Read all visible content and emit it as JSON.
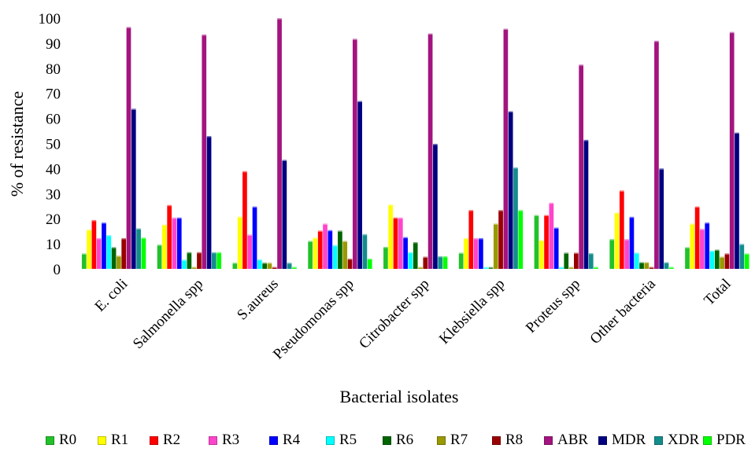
{
  "chart_data": {
    "type": "bar",
    "title": "",
    "xlabel": "Bacterial isolates",
    "ylabel": "% of resistance",
    "ylim": [
      0,
      100
    ],
    "yticks": [
      "0",
      "10",
      "20",
      "30",
      "40",
      "50",
      "60",
      "70",
      "80",
      "90",
      "100"
    ],
    "grid": false,
    "legend_position": "bottom",
    "categories": [
      "E. coli",
      "Salmonella spp",
      "S.aureus",
      "Pseudomonas spp",
      "Citrobacter spp",
      "Klebsiella spp",
      "Proteus spp",
      "Other bacteria",
      "Total"
    ],
    "series": [
      {
        "name": "R0",
        "color": "#22c12a",
        "values": [
          5.7,
          9.2,
          2.0,
          10.7,
          8.3,
          6.0,
          21.0,
          11.4,
          8.2
        ]
      },
      {
        "name": "R1",
        "color": "#ffff00",
        "values": [
          15.2,
          17.2,
          20.4,
          12.0,
          25.2,
          11.8,
          11.0,
          22.0,
          17.6
        ]
      },
      {
        "name": "R2",
        "color": "#ff0000",
        "values": [
          19.0,
          25.0,
          38.5,
          14.8,
          20.0,
          23.0,
          21.0,
          30.8,
          24.4
        ]
      },
      {
        "name": "R3",
        "color": "#ff44cc",
        "values": [
          11.8,
          20.0,
          13.2,
          17.6,
          20.0,
          11.8,
          25.9,
          11.4,
          15.5
        ]
      },
      {
        "name": "R4",
        "color": "#0000ff",
        "values": [
          18.0,
          20.0,
          24.4,
          15.0,
          12.2,
          11.8,
          16.0,
          20.3,
          18.0
        ]
      },
      {
        "name": "R5",
        "color": "#00ffff",
        "values": [
          13.0,
          3.2,
          3.3,
          9.0,
          6.2,
          0.2,
          0.3,
          6.0,
          6.8
        ]
      },
      {
        "name": "R6",
        "color": "#006400",
        "values": [
          8.2,
          6.2,
          2.0,
          14.8,
          10.2,
          0.2,
          6.0,
          2.2,
          7.2
        ]
      },
      {
        "name": "R7",
        "color": "#999900",
        "values": [
          4.8,
          0.3,
          2.0,
          10.7,
          0.3,
          17.6,
          0.3,
          2.2,
          4.4
        ]
      },
      {
        "name": "R8",
        "color": "#990000",
        "values": [
          11.8,
          6.2,
          0.3,
          3.6,
          4.4,
          23.0,
          6.0,
          0.3,
          5.7
        ]
      },
      {
        "name": "ABR",
        "color": "#a3147f",
        "values": [
          96.0,
          93.0,
          99.5,
          91.3,
          93.4,
          95.3,
          81.0,
          90.5,
          94.0
        ]
      },
      {
        "name": "MDR",
        "color": "#000080",
        "values": [
          63.4,
          52.5,
          43.0,
          66.5,
          49.4,
          62.4,
          51.0,
          39.6,
          53.9
        ]
      },
      {
        "name": "XDR",
        "color": "#138c8c",
        "values": [
          15.7,
          6.2,
          2.0,
          13.4,
          4.6,
          40.0,
          5.8,
          2.2,
          9.5
        ]
      },
      {
        "name": "PDR",
        "color": "#00ff00",
        "values": [
          12.0,
          6.2,
          0.3,
          3.6,
          4.6,
          23.0,
          0.3,
          0.3,
          5.7
        ]
      }
    ]
  }
}
